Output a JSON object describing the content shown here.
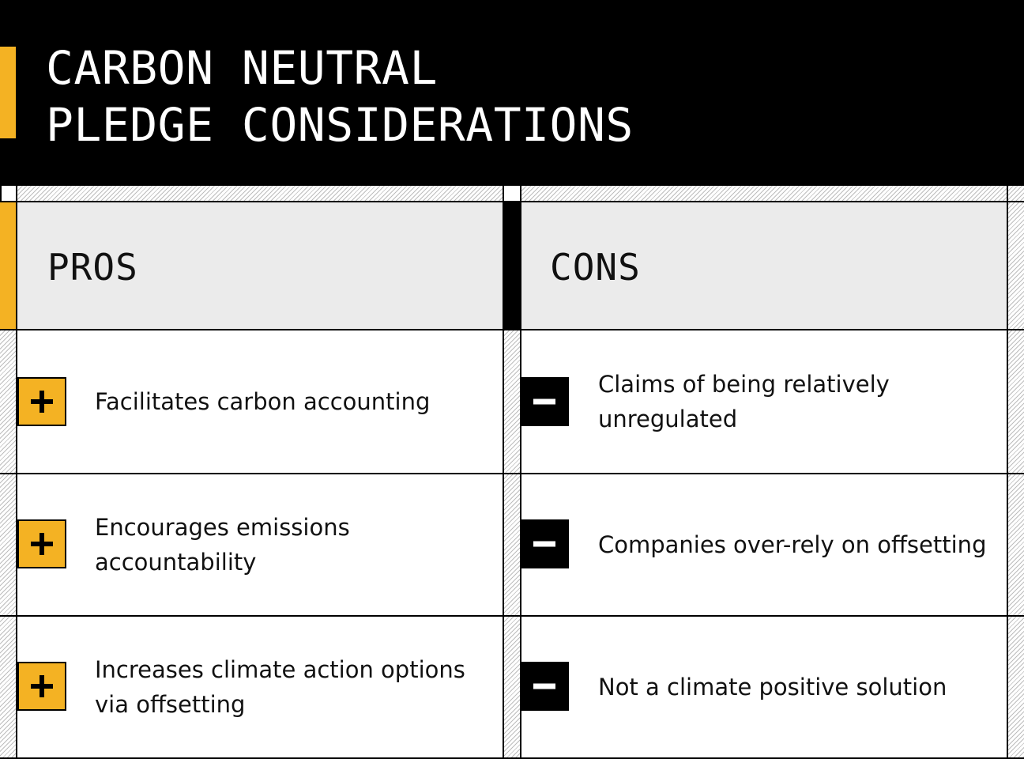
{
  "title": {
    "line1": "CARBON NEUTRAL",
    "line2": "PLEDGE CONSIDERATIONS"
  },
  "colors": {
    "accent": "#f4b223",
    "dark": "#000000",
    "header_gray": "#ebebeb"
  },
  "columns": {
    "pros": {
      "label": "PROS",
      "icon": "plus-icon",
      "items": [
        "Facilitates carbon accounting",
        "Encourages emissions accountability",
        "Increases climate action options via offsetting"
      ]
    },
    "cons": {
      "label": "CONS",
      "icon": "minus-icon",
      "items": [
        "Claims of being relatively unregulated",
        "Companies over-rely on offsetting",
        "Not a climate positive solution"
      ]
    }
  }
}
